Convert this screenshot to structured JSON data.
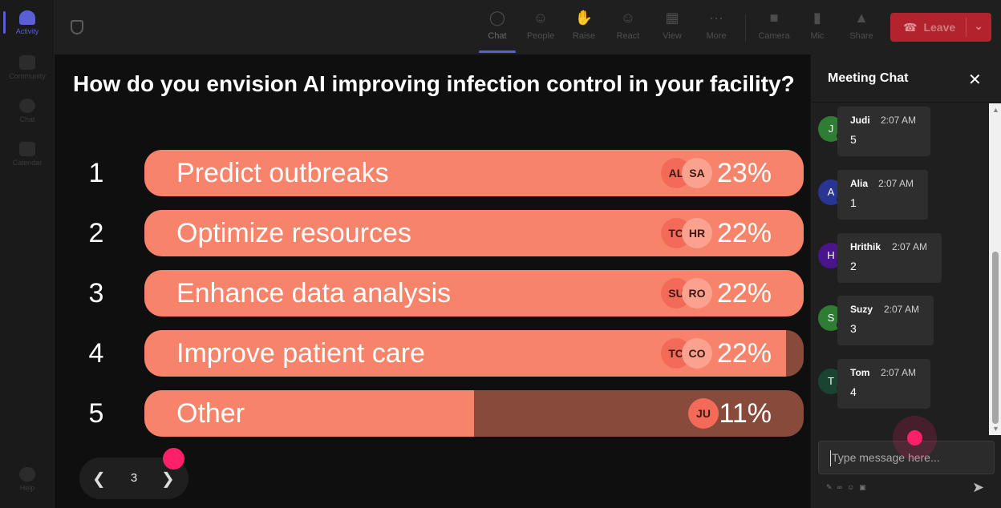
{
  "rail": {
    "items": [
      {
        "label": "Activity"
      },
      {
        "label": "Community"
      },
      {
        "label": "Chat"
      },
      {
        "label": "Calendar"
      },
      {
        "label": "Help"
      }
    ]
  },
  "toolbar": {
    "chat": "Chat",
    "people": "People",
    "raise": "Raise",
    "react": "React",
    "view": "View",
    "more": "More",
    "camera": "Camera",
    "mic": "Mic",
    "share": "Share",
    "leave": "Leave"
  },
  "poll": {
    "question": "How do you envision AI improving infection control in your facility?",
    "options": [
      {
        "num": "1",
        "label": "Predict outbreaks",
        "pct": "23%",
        "fill": 1.0,
        "avatars": [
          "AL",
          "SA"
        ]
      },
      {
        "num": "2",
        "label": "Optimize resources",
        "pct": "22%",
        "fill": 1.0,
        "avatars": [
          "TO",
          "HR"
        ]
      },
      {
        "num": "3",
        "label": "Enhance data analysis",
        "pct": "22%",
        "fill": 1.0,
        "avatars": [
          "SU",
          "RO"
        ]
      },
      {
        "num": "4",
        "label": "Improve patient care",
        "pct": "22%",
        "fill": 0.973,
        "avatars": [
          "TO",
          "CO"
        ]
      },
      {
        "num": "5",
        "label": "Other",
        "pct": "11%",
        "fill": 0.5,
        "avatars": [
          "JU"
        ]
      }
    ],
    "page": "3"
  },
  "chat": {
    "title": "Meeting Chat",
    "messages": [
      {
        "initial": "J",
        "name": "Judi",
        "time": "2:07 AM",
        "text": "5",
        "color": "#2e7d32"
      },
      {
        "initial": "A",
        "name": "Alia",
        "time": "2:07 AM",
        "text": "1",
        "color": "#283593"
      },
      {
        "initial": "H",
        "name": "Hrithik",
        "time": "2:07 AM",
        "text": "2",
        "color": "#4a148c"
      },
      {
        "initial": "S",
        "name": "Suzy",
        "time": "2:07 AM",
        "text": "3",
        "color": "#2e7d32"
      },
      {
        "initial": "T",
        "name": "Tom",
        "time": "2:07 AM",
        "text": "4",
        "color": "#1b4332"
      }
    ],
    "input_placeholder": "Type message here..."
  },
  "colors": {
    "bar_fill": "#f7846a",
    "bar_track": "#874a3b",
    "leave": "#b3232d",
    "accent": "#5a5fd6",
    "pointer": "#ff1f6b"
  }
}
